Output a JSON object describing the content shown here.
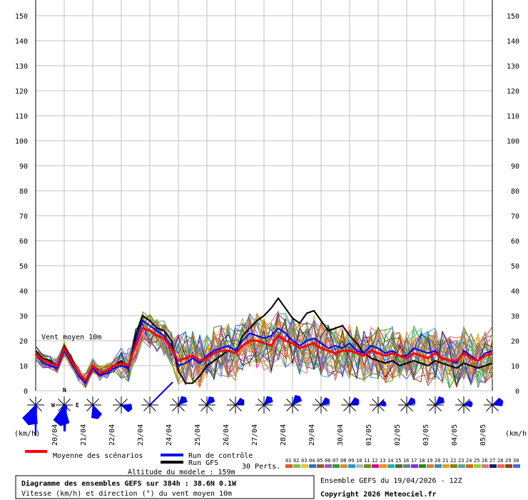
{
  "chart_data": {
    "type": "line",
    "y_label_left": "(km/h)",
    "y_label_right": "(km/h)",
    "ylim": [
      0,
      150
    ],
    "y_ticks": [
      0,
      10,
      20,
      30,
      40,
      50,
      60,
      70,
      80,
      90,
      100,
      110,
      120,
      130,
      140,
      150
    ],
    "x_ticks": [
      "20/04",
      "21/04",
      "22/04",
      "23/04",
      "24/04",
      "25/04",
      "26/04",
      "27/04",
      "28/04",
      "29/04",
      "30/04",
      "01/05",
      "02/05",
      "03/05",
      "04/05",
      "05/05"
    ],
    "grid": true,
    "annotation": "Vent moyen 10m",
    "x_hours": [
      0,
      6,
      12,
      18,
      24,
      30,
      36,
      42,
      48,
      54,
      60,
      66,
      72,
      78,
      84,
      90,
      96,
      102,
      108,
      114,
      120,
      126,
      132,
      138,
      144,
      150,
      156,
      162,
      168,
      174,
      180,
      186,
      192,
      198,
      204,
      210,
      216,
      222,
      228,
      234,
      240,
      246,
      252,
      258,
      264,
      270,
      276,
      282,
      288,
      294,
      300,
      306,
      312,
      318,
      324,
      330,
      336,
      342,
      348,
      354,
      360,
      366,
      372,
      378,
      384
    ],
    "series": [
      {
        "name": "Moyenne des scénarios",
        "color": "#ff0000",
        "values": [
          15,
          12,
          11,
          10,
          17,
          12,
          7,
          4,
          10,
          7,
          8,
          10,
          11,
          10,
          18,
          25,
          24,
          22,
          21,
          17,
          12,
          13,
          14,
          12,
          13,
          15,
          16,
          16,
          15,
          18,
          20,
          20,
          19,
          18,
          22,
          20,
          19,
          17,
          18,
          19,
          17,
          16,
          15,
          16,
          16,
          15,
          14,
          16,
          15,
          14,
          15,
          14,
          13,
          15,
          14,
          13,
          15,
          13,
          12,
          12,
          15,
          13,
          12,
          14,
          15
        ]
      },
      {
        "name": "Run de contrôle",
        "color": "#0000ff",
        "values": [
          15,
          11,
          10,
          9,
          16,
          11,
          6,
          3,
          9,
          6,
          7,
          9,
          10,
          9,
          20,
          28,
          26,
          24,
          22,
          18,
          10,
          11,
          13,
          11,
          14,
          16,
          17,
          18,
          16,
          20,
          23,
          22,
          21,
          22,
          25,
          23,
          20,
          18,
          20,
          21,
          19,
          17,
          18,
          17,
          19,
          16,
          15,
          18,
          17,
          15,
          16,
          14,
          14,
          17,
          16,
          15,
          16,
          13,
          12,
          11,
          16,
          14,
          12,
          15,
          16
        ]
      },
      {
        "name": "Run GFS",
        "color": "#000000",
        "values": [
          16,
          13,
          12,
          10,
          18,
          13,
          7,
          3,
          9,
          6,
          8,
          10,
          12,
          9,
          22,
          30,
          28,
          25,
          24,
          20,
          8,
          3,
          3,
          6,
          10,
          12,
          14,
          16,
          15,
          22,
          25,
          28,
          30,
          33,
          37,
          33,
          29,
          27,
          31,
          32,
          28,
          24,
          25,
          26,
          22,
          19,
          15,
          13,
          12,
          11,
          12,
          10,
          11,
          12,
          11,
          10,
          12,
          11,
          10,
          9,
          11,
          10,
          9,
          10,
          11
        ]
      }
    ],
    "perturbations_label": "30 Perts.",
    "perturbations": [
      "01",
      "02",
      "03",
      "04",
      "05",
      "06",
      "07",
      "08",
      "09",
      "10",
      "11",
      "12",
      "13",
      "14",
      "15",
      "16",
      "17",
      "18",
      "19",
      "20",
      "21",
      "22",
      "23",
      "24",
      "25",
      "26",
      "27",
      "28",
      "29",
      "30"
    ],
    "perturbation_colors": [
      "#e05a1e",
      "#7cbf4d",
      "#e0c830",
      "#2f6fc6",
      "#a0522d",
      "#9b59b6",
      "#2ca02c",
      "#d68a3a",
      "#1f9bd6",
      "#b8b8b8",
      "#6b8e23",
      "#c71585",
      "#ff8c00",
      "#20b2aa",
      "#556b2f",
      "#708090",
      "#8a2be2",
      "#228b22",
      "#cd853f",
      "#4682b4",
      "#daa520",
      "#808000",
      "#5f9ea0",
      "#d2691e",
      "#9acd32",
      "#db7093",
      "#191970",
      "#ff6347",
      "#8b4513",
      "#4169e1"
    ]
  },
  "rose_labels": {
    "n": "N",
    "w": "W",
    "e": "E"
  },
  "legend": {
    "mean": "Moyenne des scénarios",
    "control": "Run de contrôle",
    "gfs": "Run GFS",
    "altitude": "Altitude du modele : 159m"
  },
  "footer": {
    "title": "Diagramme des ensembles GEFS sur 384h : 38.6N 0.1W",
    "subtitle": "Vitesse (km/h) et direction (°) du vent moyen 10m",
    "run": "Ensemble GEFS du 19/04/2026 - 12Z",
    "copyright": "Copyright 2026 Meteociel.fr"
  }
}
